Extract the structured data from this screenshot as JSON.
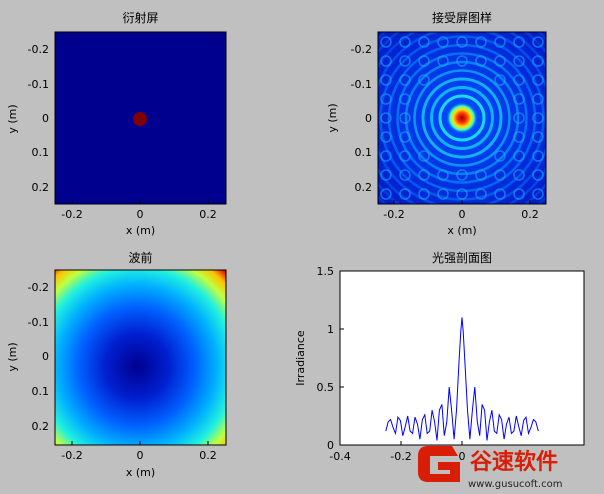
{
  "figure": {
    "background": "#c0c0c0"
  },
  "chart_data": [
    {
      "type": "heatmap",
      "title": "衍射屏",
      "xlabel": "x (m)",
      "ylabel": "y (m)",
      "xlim": [
        -0.25,
        0.25
      ],
      "ylim": [
        -0.25,
        0.25
      ],
      "y_reversed": true,
      "xticks": [
        -0.2,
        0,
        0.2
      ],
      "yticks": [
        -0.2,
        -0.1,
        0,
        0.1,
        0.2
      ],
      "xticklabels": [
        "-0.2",
        "0",
        "0.2"
      ],
      "yticklabels": [
        "-0.2",
        "-0.1",
        "0",
        "0.1",
        "0.2"
      ],
      "description": "dark blue field with a small dark-red circular aperture at the centre",
      "aperture_radius": 0.02,
      "colors": {
        "field": "#00008f",
        "aperture": "#800000"
      }
    },
    {
      "type": "heatmap",
      "title": "接受屏图样",
      "xlabel": "x (m)",
      "ylabel": "y (m)",
      "xlim": [
        -0.25,
        0.25
      ],
      "ylim": [
        -0.25,
        0.25
      ],
      "y_reversed": true,
      "xticks": [
        -0.2,
        0,
        0.2
      ],
      "yticks": [
        -0.2,
        -0.1,
        0,
        0.1,
        0.2
      ],
      "xticklabels": [
        "-0.2",
        "0",
        "0.2"
      ],
      "yticklabels": [
        "-0.2",
        "-0.1",
        "0",
        "0.1",
        "0.2"
      ],
      "description": "Airy-like diffraction rings: bright red/yellow central spot surrounded by concentric cyan rings on blue"
    },
    {
      "type": "heatmap",
      "title": "波前",
      "xlabel": "x (m)",
      "ylabel": "y (m)",
      "xlim": [
        -0.25,
        0.25
      ],
      "ylim": [
        -0.25,
        0.25
      ],
      "y_reversed": true,
      "xticks": [
        -0.2,
        0,
        0.2
      ],
      "yticks": [
        -0.2,
        -0.1,
        0,
        0.1,
        0.2
      ],
      "xticklabels": [
        "-0.2",
        "0",
        "0.2"
      ],
      "yticklabels": [
        "-0.2",
        "-0.1",
        "0",
        "0.1",
        "0.2"
      ],
      "description": "quadratic wavefront phase: dark blue minimum at centre rising through cyan and yellow to red at the corners"
    },
    {
      "type": "line",
      "title": "光强剖面图",
      "xlabel": "",
      "ylabel": "Irradiance",
      "xlim": [
        -0.4,
        0.4
      ],
      "ylim": [
        0,
        1.5
      ],
      "xticks": [
        -0.4,
        -0.2,
        0
      ],
      "yticks": [
        0,
        0.5,
        1,
        1.5
      ],
      "xticklabels": [
        "-0.4",
        "-0.2",
        "0"
      ],
      "yticklabels": [
        "0",
        "0.5",
        "1",
        "1.5"
      ],
      "color": "#0000ff",
      "series": [
        {
          "x": [
            -0.25,
            -0.242,
            -0.234,
            -0.226,
            -0.218,
            -0.21,
            -0.202,
            -0.194,
            -0.186,
            -0.178,
            -0.17,
            -0.162,
            -0.154,
            -0.146,
            -0.138,
            -0.13,
            -0.122,
            -0.114,
            -0.106,
            -0.098,
            -0.09,
            -0.082,
            -0.074,
            -0.066,
            -0.058,
            -0.05,
            -0.042,
            -0.034,
            -0.026,
            -0.018,
            -0.01,
            -0.004,
            0,
            0.004,
            0.01,
            0.018,
            0.026,
            0.034,
            0.042,
            0.05,
            0.058,
            0.066,
            0.074,
            0.082,
            0.09,
            0.098,
            0.106,
            0.114,
            0.122,
            0.13,
            0.138,
            0.146,
            0.154,
            0.162,
            0.17,
            0.178,
            0.186,
            0.194,
            0.202,
            0.21,
            0.218,
            0.226,
            0.234,
            0.242,
            0.25
          ],
          "y": [
            0.12,
            0.2,
            0.22,
            0.15,
            0.1,
            0.24,
            0.21,
            0.08,
            0.16,
            0.25,
            0.12,
            0.1,
            0.24,
            0.18,
            0.05,
            0.22,
            0.26,
            0.1,
            0.12,
            0.3,
            0.2,
            0.04,
            0.3,
            0.35,
            0.08,
            0.2,
            0.5,
            0.3,
            0.05,
            0.3,
            0.7,
            0.98,
            1.1,
            0.98,
            0.7,
            0.3,
            0.05,
            0.3,
            0.5,
            0.2,
            0.08,
            0.35,
            0.3,
            0.04,
            0.2,
            0.3,
            0.12,
            0.1,
            0.26,
            0.22,
            0.05,
            0.18,
            0.24,
            0.1,
            0.12,
            0.25,
            0.16,
            0.08,
            0.21,
            0.24,
            0.1,
            0.15,
            0.22,
            0.2,
            0.12
          ]
        }
      ]
    }
  ],
  "watermark": {
    "brand": "谷速软件",
    "url": "www.gusuсoft.com",
    "color": "#d81e06"
  }
}
